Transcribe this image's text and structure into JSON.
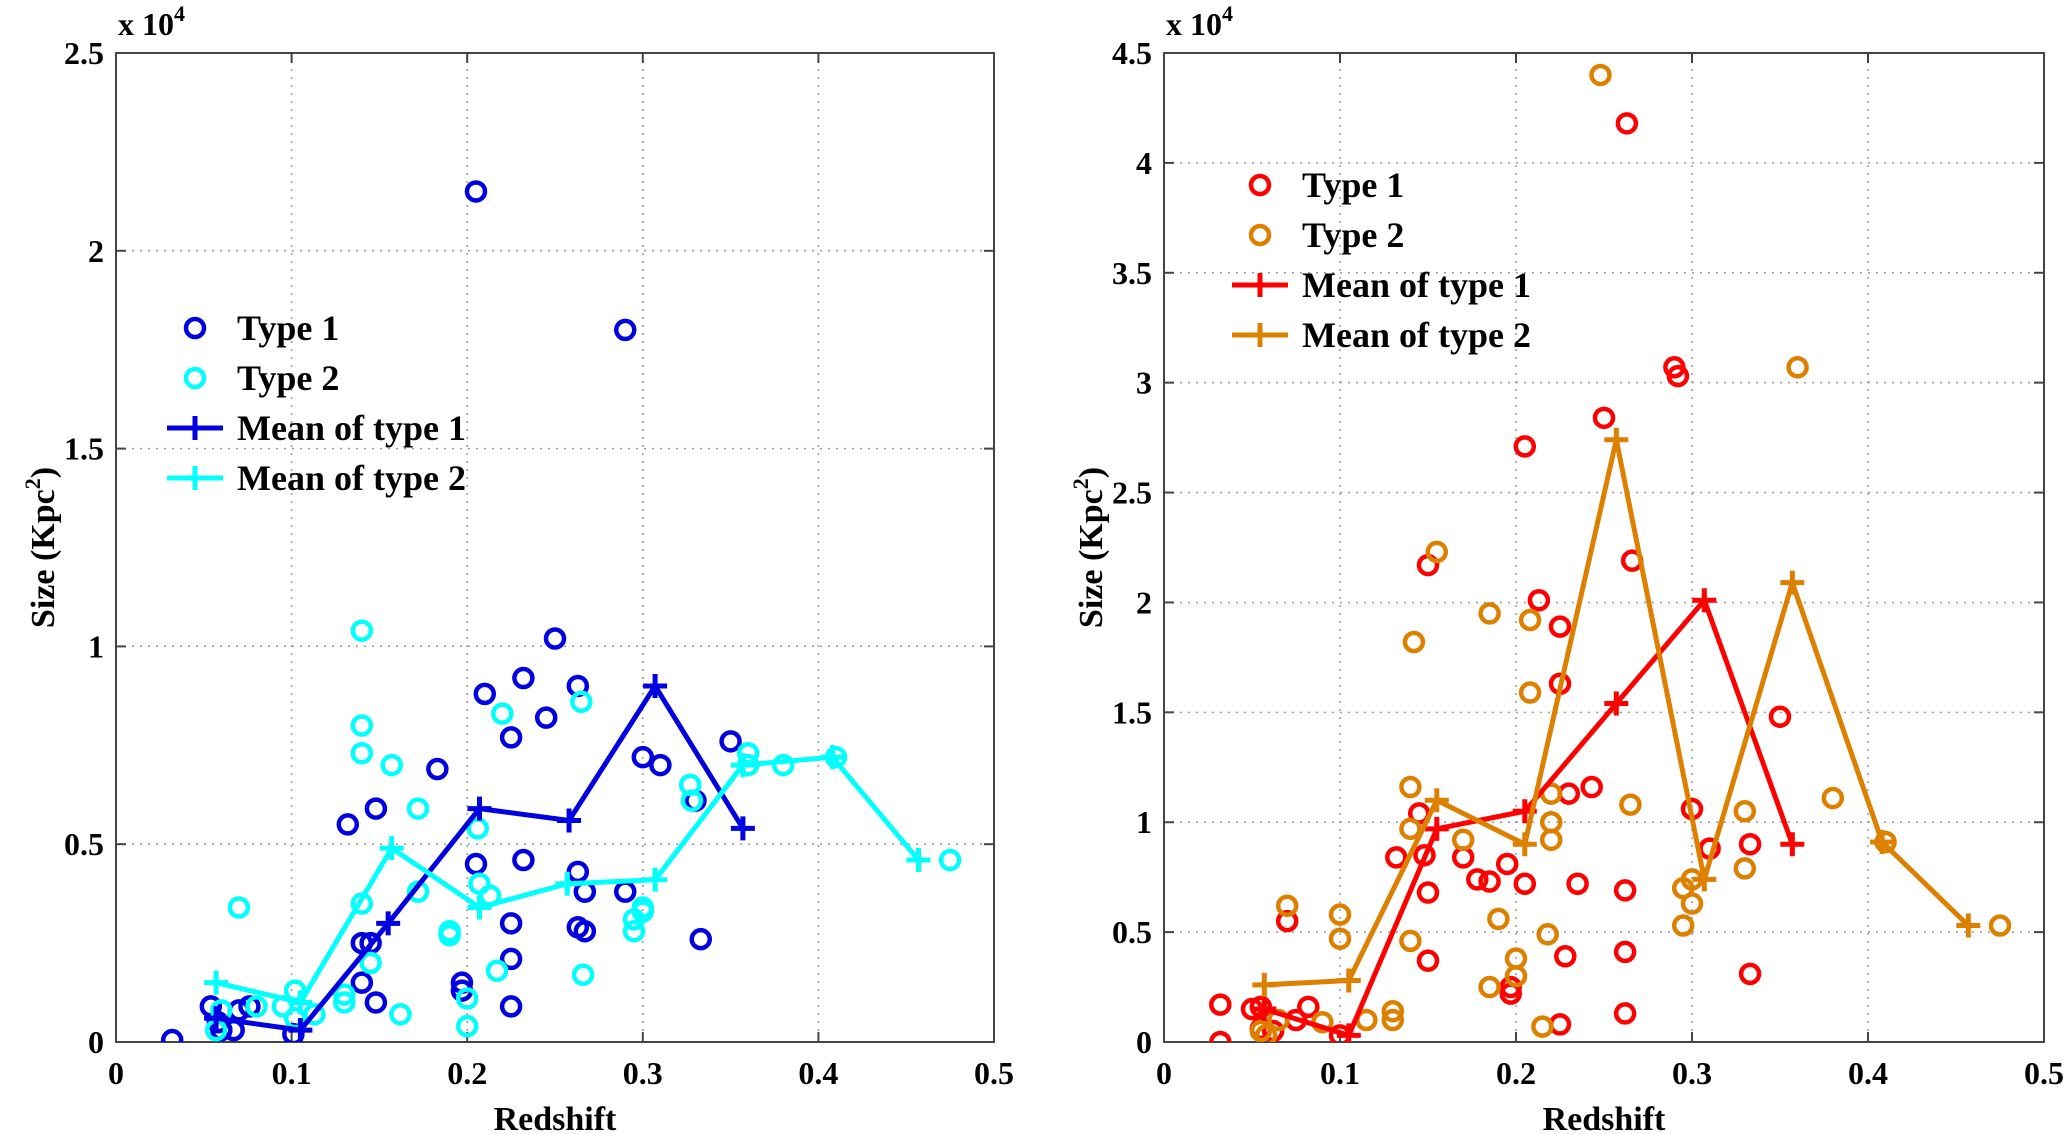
{
  "chart_data": [
    {
      "type": "scatter",
      "xlabel": "Redshift",
      "ylabel": "Size (Kpc",
      "ylabel_sup": "2",
      "ylabel_close": ")",
      "exponent_label": "x 10",
      "exponent_sup": "4",
      "xlim": [
        0,
        0.5
      ],
      "ylim": [
        0,
        2.5
      ],
      "xticks": [
        "0",
        "0.1",
        "0.2",
        "0.3",
        "0.4",
        "0.5"
      ],
      "yticks": [
        "0",
        "0.5",
        "1",
        "1.5",
        "2",
        "2.5"
      ],
      "grid": true,
      "legend_position": "upper-left",
      "series": [
        {
          "name": "Type 1",
          "marker": "circle",
          "color": "#0000e0",
          "points": [
            [
              0.032,
              0.005
            ],
            [
              0.054,
              0.09
            ],
            [
              0.058,
              0.05
            ],
            [
              0.06,
              0.03
            ],
            [
              0.067,
              0.03
            ],
            [
              0.07,
              0.08
            ],
            [
              0.076,
              0.09
            ],
            [
              0.101,
              0.02
            ],
            [
              0.132,
              0.55
            ],
            [
              0.14,
              0.25
            ],
            [
              0.14,
              0.15
            ],
            [
              0.145,
              0.25
            ],
            [
              0.148,
              0.59
            ],
            [
              0.148,
              0.1
            ],
            [
              0.183,
              0.69
            ],
            [
              0.197,
              0.15
            ],
            [
              0.197,
              0.13
            ],
            [
              0.205,
              2.15
            ],
            [
              0.205,
              0.45
            ],
            [
              0.21,
              0.88
            ],
            [
              0.225,
              0.77
            ],
            [
              0.225,
              0.3
            ],
            [
              0.225,
              0.21
            ],
            [
              0.225,
              0.09
            ],
            [
              0.232,
              0.92
            ],
            [
              0.232,
              0.46
            ],
            [
              0.245,
              0.82
            ],
            [
              0.25,
              1.02
            ],
            [
              0.263,
              0.9
            ],
            [
              0.263,
              0.43
            ],
            [
              0.263,
              0.29
            ],
            [
              0.267,
              0.28
            ],
            [
              0.267,
              0.38
            ],
            [
              0.29,
              1.8
            ],
            [
              0.29,
              0.38
            ],
            [
              0.3,
              0.72
            ],
            [
              0.31,
              0.7
            ],
            [
              0.33,
              0.61
            ],
            [
              0.333,
              0.26
            ],
            [
              0.35,
              0.76
            ]
          ]
        },
        {
          "name": "Type 2",
          "marker": "circle",
          "color": "#00ffff",
          "points": [
            [
              0.057,
              0.03
            ],
            [
              0.06,
              0.08
            ],
            [
              0.07,
              0.34
            ],
            [
              0.08,
              0.09
            ],
            [
              0.095,
              0.09
            ],
            [
              0.102,
              0.13
            ],
            [
              0.102,
              0.06
            ],
            [
              0.113,
              0.07
            ],
            [
              0.13,
              0.1
            ],
            [
              0.13,
              0.12
            ],
            [
              0.14,
              1.04
            ],
            [
              0.14,
              0.8
            ],
            [
              0.14,
              0.73
            ],
            [
              0.14,
              0.35
            ],
            [
              0.145,
              0.2
            ],
            [
              0.157,
              0.7
            ],
            [
              0.162,
              0.07
            ],
            [
              0.172,
              0.59
            ],
            [
              0.172,
              0.38
            ],
            [
              0.19,
              0.28
            ],
            [
              0.19,
              0.27
            ],
            [
              0.2,
              0.11
            ],
            [
              0.2,
              0.04
            ],
            [
              0.206,
              0.54
            ],
            [
              0.207,
              0.4
            ],
            [
              0.213,
              0.37
            ],
            [
              0.217,
              0.18
            ],
            [
              0.22,
              0.83
            ],
            [
              0.265,
              0.86
            ],
            [
              0.266,
              0.17
            ],
            [
              0.295,
              0.28
            ],
            [
              0.295,
              0.31
            ],
            [
              0.3,
              0.33
            ],
            [
              0.3,
              0.34
            ],
            [
              0.327,
              0.65
            ],
            [
              0.328,
              0.61
            ],
            [
              0.36,
              0.73
            ],
            [
              0.36,
              0.7
            ],
            [
              0.38,
              0.7
            ],
            [
              0.41,
              0.72
            ],
            [
              0.475,
              0.46
            ]
          ]
        },
        {
          "name": "Mean of type 1",
          "marker": "plus-line",
          "color": "#0000e0",
          "points": [
            [
              0.057,
              0.06
            ],
            [
              0.105,
              0.03
            ],
            [
              0.155,
              0.3
            ],
            [
              0.207,
              0.59
            ],
            [
              0.258,
              0.56
            ],
            [
              0.307,
              0.9
            ],
            [
              0.357,
              0.54
            ]
          ]
        },
        {
          "name": "Mean of type 2",
          "marker": "plus-line",
          "color": "#00ffff",
          "points": [
            [
              0.057,
              0.15
            ],
            [
              0.105,
              0.1
            ],
            [
              0.157,
              0.49
            ],
            [
              0.207,
              0.34
            ],
            [
              0.257,
              0.4
            ],
            [
              0.307,
              0.41
            ],
            [
              0.357,
              0.7
            ],
            [
              0.408,
              0.72
            ],
            [
              0.457,
              0.46
            ]
          ]
        }
      ]
    },
    {
      "type": "scatter",
      "xlabel": "Redshift",
      "ylabel": "Size (Kpc",
      "ylabel_sup": "2",
      "ylabel_close": ")",
      "exponent_label": "x 10",
      "exponent_sup": "4",
      "xlim": [
        0,
        0.5
      ],
      "ylim": [
        0,
        4.5
      ],
      "xticks": [
        "0",
        "0.1",
        "0.2",
        "0.3",
        "0.4",
        "0.5"
      ],
      "yticks": [
        "0",
        "0.5",
        "1",
        "1.5",
        "2",
        "2.5",
        "3",
        "3.5",
        "4",
        "4.5"
      ],
      "grid": true,
      "legend_position": "upper-left",
      "series": [
        {
          "name": "Type 1",
          "marker": "circle",
          "color": "#ff0000",
          "points": [
            [
              0.032,
              0.17
            ],
            [
              0.032,
              0.0
            ],
            [
              0.05,
              0.15
            ],
            [
              0.055,
              0.16
            ],
            [
              0.055,
              0.06
            ],
            [
              0.062,
              0.05
            ],
            [
              0.07,
              0.55
            ],
            [
              0.075,
              0.1
            ],
            [
              0.082,
              0.16
            ],
            [
              0.1,
              0.03
            ],
            [
              0.132,
              0.84
            ],
            [
              0.145,
              1.04
            ],
            [
              0.148,
              0.85
            ],
            [
              0.15,
              0.68
            ],
            [
              0.15,
              0.37
            ],
            [
              0.15,
              2.17
            ],
            [
              0.17,
              0.84
            ],
            [
              0.178,
              0.74
            ],
            [
              0.185,
              0.73
            ],
            [
              0.195,
              0.81
            ],
            [
              0.197,
              0.25
            ],
            [
              0.197,
              0.22
            ],
            [
              0.205,
              2.71
            ],
            [
              0.205,
              0.72
            ],
            [
              0.213,
              2.01
            ],
            [
              0.225,
              1.89
            ],
            [
              0.225,
              1.63
            ],
            [
              0.225,
              0.08
            ],
            [
              0.228,
              0.39
            ],
            [
              0.23,
              1.13
            ],
            [
              0.235,
              0.72
            ],
            [
              0.243,
              1.16
            ],
            [
              0.25,
              2.84
            ],
            [
              0.262,
              0.69
            ],
            [
              0.262,
              0.41
            ],
            [
              0.262,
              0.13
            ],
            [
              0.266,
              2.19
            ],
            [
              0.263,
              4.18
            ],
            [
              0.29,
              3.07
            ],
            [
              0.292,
              3.03
            ],
            [
              0.3,
              1.06
            ],
            [
              0.31,
              0.88
            ],
            [
              0.333,
              0.9
            ],
            [
              0.333,
              0.31
            ],
            [
              0.35,
              1.48
            ]
          ]
        },
        {
          "name": "Type 2",
          "marker": "circle",
          "color": "#dd8000",
          "points": [
            [
              0.055,
              0.05
            ],
            [
              0.058,
              0.03
            ],
            [
              0.065,
              0.1
            ],
            [
              0.07,
              0.62
            ],
            [
              0.09,
              0.09
            ],
            [
              0.1,
              0.58
            ],
            [
              0.1,
              0.47
            ],
            [
              0.115,
              0.1
            ],
            [
              0.13,
              0.14
            ],
            [
              0.13,
              0.1
            ],
            [
              0.14,
              1.16
            ],
            [
              0.14,
              0.97
            ],
            [
              0.14,
              0.46
            ],
            [
              0.142,
              1.82
            ],
            [
              0.155,
              2.23
            ],
            [
              0.17,
              0.92
            ],
            [
              0.185,
              0.25
            ],
            [
              0.185,
              1.95
            ],
            [
              0.19,
              0.56
            ],
            [
              0.2,
              0.38
            ],
            [
              0.2,
              0.3
            ],
            [
              0.208,
              1.92
            ],
            [
              0.208,
              1.59
            ],
            [
              0.215,
              0.07
            ],
            [
              0.218,
              0.49
            ],
            [
              0.22,
              1.13
            ],
            [
              0.22,
              1.0
            ],
            [
              0.22,
              0.92
            ],
            [
              0.248,
              4.4
            ],
            [
              0.265,
              1.08
            ],
            [
              0.295,
              0.7
            ],
            [
              0.295,
              0.53
            ],
            [
              0.3,
              0.74
            ],
            [
              0.3,
              0.63
            ],
            [
              0.33,
              1.05
            ],
            [
              0.33,
              0.79
            ],
            [
              0.36,
              3.07
            ],
            [
              0.38,
              1.11
            ],
            [
              0.41,
              0.91
            ],
            [
              0.475,
              0.53
            ]
          ]
        },
        {
          "name": "Mean of type 1",
          "marker": "plus-line",
          "color": "#ff0000",
          "points": [
            [
              0.057,
              0.15
            ],
            [
              0.105,
              0.03
            ],
            [
              0.155,
              0.97
            ],
            [
              0.205,
              1.05
            ],
            [
              0.257,
              1.54
            ],
            [
              0.307,
              2.01
            ],
            [
              0.357,
              0.9
            ]
          ]
        },
        {
          "name": "Mean of type 2",
          "marker": "plus-line",
          "color": "#dd8000",
          "points": [
            [
              0.057,
              0.26
            ],
            [
              0.105,
              0.28
            ],
            [
              0.155,
              1.1
            ],
            [
              0.205,
              0.9
            ],
            [
              0.257,
              2.74
            ],
            [
              0.307,
              0.74
            ],
            [
              0.357,
              2.09
            ],
            [
              0.408,
              0.91
            ],
            [
              0.457,
              0.53
            ]
          ]
        }
      ]
    }
  ]
}
